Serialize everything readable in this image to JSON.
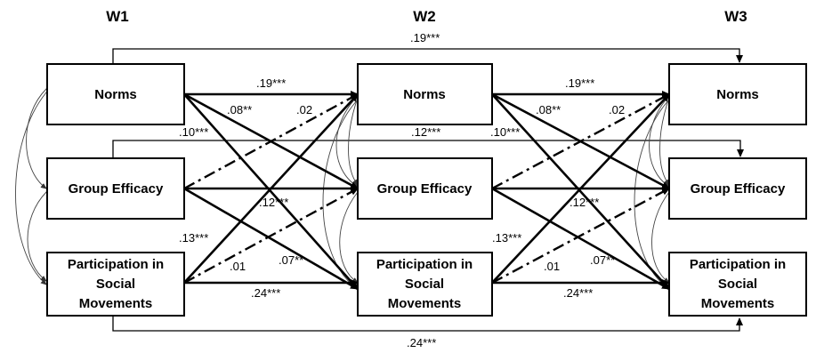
{
  "waves": [
    "W1",
    "W2",
    "W3"
  ],
  "constructs": {
    "norms": "Norms",
    "efficacy": "Group Efficacy",
    "participation": [
      "Participation in",
      "Social",
      "Movements"
    ]
  },
  "coefficients": {
    "norms_autoregressive": ".19***",
    "norms_to_efficacy": ".08**",
    "norms_to_participation": ".10***",
    "efficacy_to_norms": ".02",
    "efficacy_to_participation": ".12***",
    "participation_to_norms": ".13***",
    "participation_to_efficacy": ".01",
    "efficacy_from_participation_label": ".07**",
    "participation_autoregressive": ".24***",
    "norms_w1_to_w3": ".19***",
    "efficacy_w1_to_w3": ".12***",
    "participation_w1_to_w3": ".24***"
  }
}
